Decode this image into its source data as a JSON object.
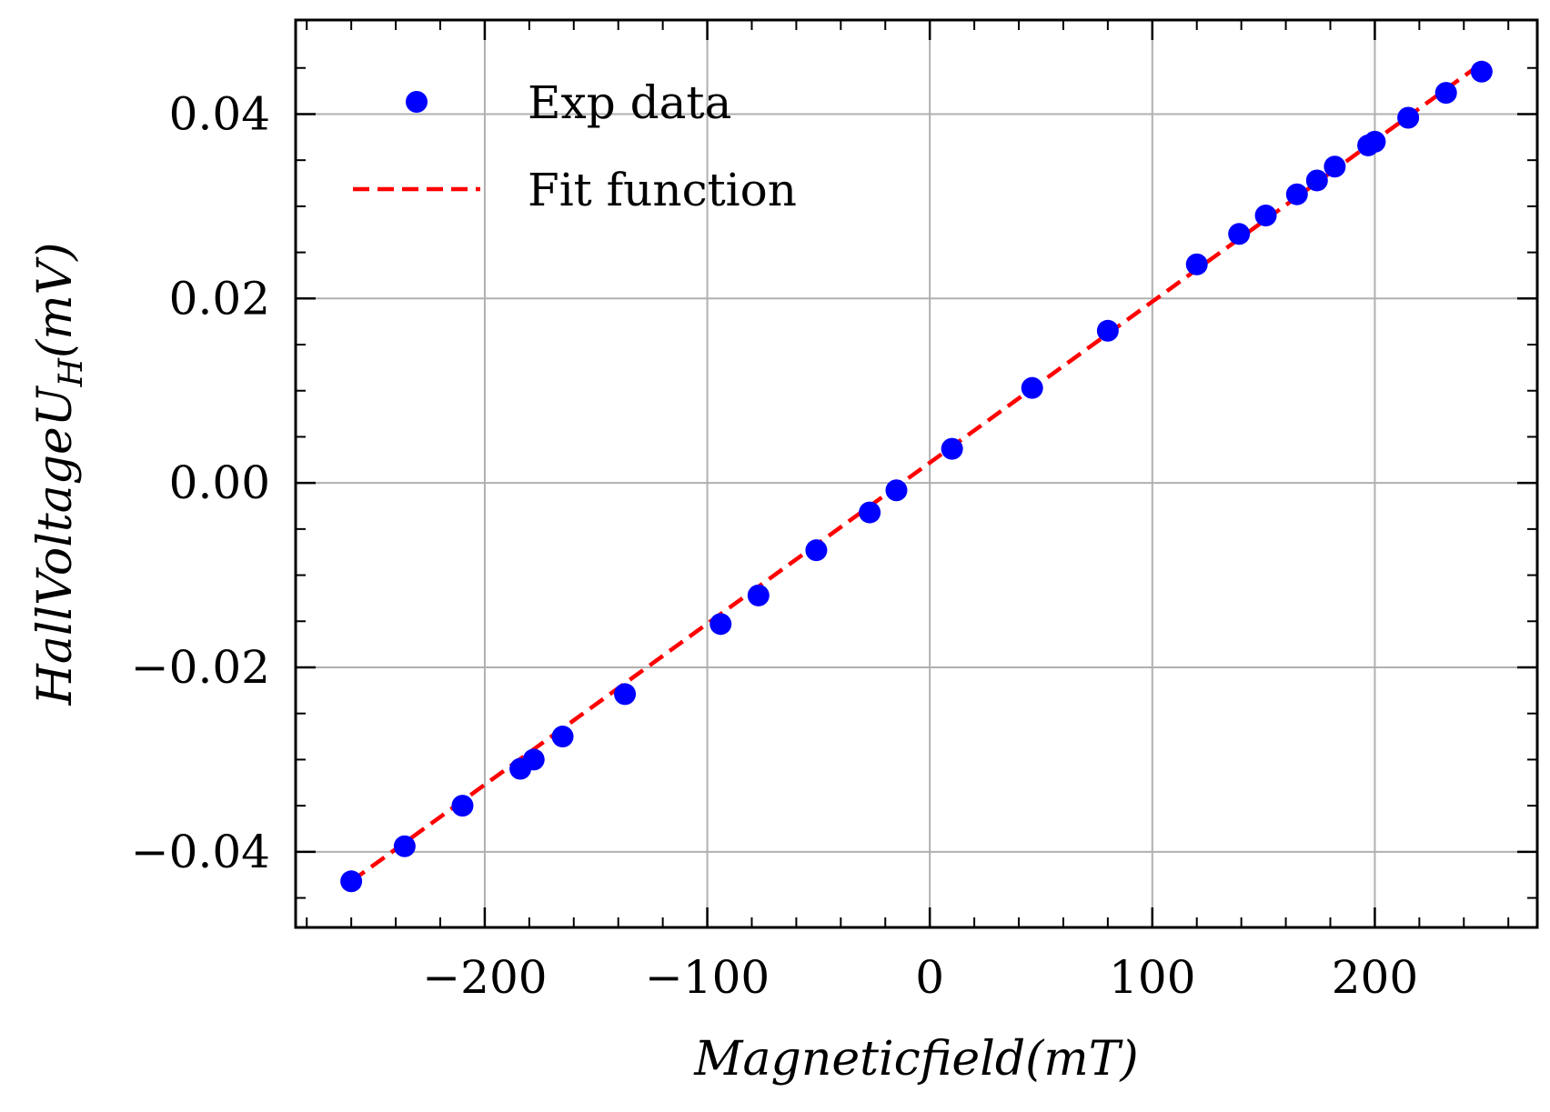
{
  "chart_data": {
    "type": "scatter",
    "xlabel": "Magneticfield(mT)",
    "ylabel": "HallVoltageU_H(mV)",
    "xlim": [
      -285,
      273
    ],
    "ylim": [
      -0.0482,
      0.0502
    ],
    "xticks": [
      -200,
      -100,
      0,
      100,
      200
    ],
    "xtick_labels": [
      "−200",
      "−100",
      "0",
      "100",
      "200"
    ],
    "yticks": [
      -0.04,
      -0.02,
      0.0,
      0.02,
      0.04
    ],
    "ytick_labels": [
      "−0.04",
      "−0.02",
      "0.00",
      "0.02",
      "0.04"
    ],
    "grid": true,
    "legend_position": "top-left",
    "series": [
      {
        "name": "Exp data",
        "kind": "scatter",
        "color": "#0000ff",
        "x": [
          -260,
          -236,
          -210,
          -184,
          -178,
          -165,
          -137,
          -94,
          -77,
          -51,
          -27,
          -15,
          10,
          46,
          80,
          120,
          139,
          151,
          165,
          174,
          182,
          197,
          200,
          215,
          232,
          248
        ],
        "y": [
          -0.0432,
          -0.0394,
          -0.035,
          -0.031,
          -0.03,
          -0.0275,
          -0.0229,
          -0.0153,
          -0.0122,
          -0.0073,
          -0.0032,
          -0.0008,
          0.0037,
          0.0103,
          0.0165,
          0.0237,
          0.027,
          0.029,
          0.0313,
          0.0328,
          0.0343,
          0.0366,
          0.037,
          0.0396,
          0.0423,
          0.0446
        ]
      },
      {
        "name": "Fit function",
        "kind": "line",
        "style": "dashed",
        "color": "#ff0000",
        "x": [
          -260,
          248
        ],
        "y": [
          -0.0432,
          0.0455
        ]
      }
    ]
  }
}
